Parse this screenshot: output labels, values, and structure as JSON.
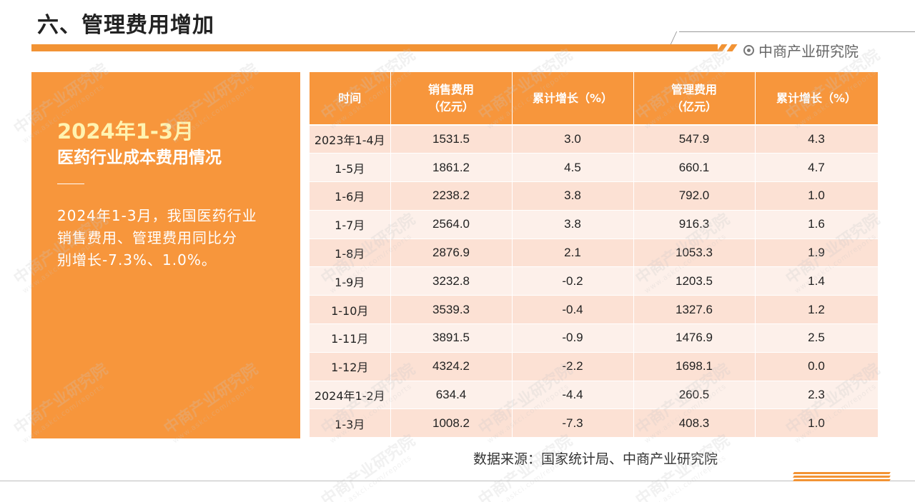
{
  "header": {
    "title": "六、管理费用增加",
    "brand": "中商产业研究院"
  },
  "panel": {
    "year_heading": "2024年1-3月",
    "subtitle": "医药行业成本费用情况",
    "lines": [
      "2024年1-3月，我国医药行业",
      "销售费用、管理费用同比分",
      "别增长-7.3%、1.0%。"
    ]
  },
  "table": {
    "headers": [
      {
        "line1": "时间",
        "line2": ""
      },
      {
        "line1": "销售费用",
        "line2": "（亿元）"
      },
      {
        "line1": "累计增长（%）",
        "line2": ""
      },
      {
        "line1": "管理费用",
        "line2": "（亿元）"
      },
      {
        "line1": "累计增长（%）",
        "line2": ""
      }
    ],
    "rows": [
      {
        "time": "2023年1-4月",
        "sales": "1531.5",
        "sales_growth": "3.0",
        "admin": "547.9",
        "admin_growth": "4.3"
      },
      {
        "time": "1-5月",
        "sales": "1861.2",
        "sales_growth": "4.5",
        "admin": "660.1",
        "admin_growth": "4.7"
      },
      {
        "time": "1-6月",
        "sales": "2238.2",
        "sales_growth": "3.8",
        "admin": "792.0",
        "admin_growth": "1.0"
      },
      {
        "time": "1-7月",
        "sales": "2564.0",
        "sales_growth": "3.8",
        "admin": "916.3",
        "admin_growth": "1.6"
      },
      {
        "time": "1-8月",
        "sales": "2876.9",
        "sales_growth": "2.1",
        "admin": "1053.3",
        "admin_growth": "1.9"
      },
      {
        "time": "1-9月",
        "sales": "3232.8",
        "sales_growth": "-0.2",
        "admin": "1203.5",
        "admin_growth": "1.4"
      },
      {
        "time": "1-10月",
        "sales": "3539.3",
        "sales_growth": "-0.4",
        "admin": "1327.6",
        "admin_growth": "1.2"
      },
      {
        "time": "1-11月",
        "sales": "3891.5",
        "sales_growth": "-0.9",
        "admin": "1476.9",
        "admin_growth": "2.5"
      },
      {
        "time": "1-12月",
        "sales": "4324.2",
        "sales_growth": "-2.2",
        "admin": "1698.1",
        "admin_growth": "0.0"
      },
      {
        "time": "2024年1-2月",
        "sales": "634.4",
        "sales_growth": "-4.4",
        "admin": "260.5",
        "admin_growth": "2.3"
      },
      {
        "time": "1-3月",
        "sales": "1008.2",
        "sales_growth": "-7.3",
        "admin": "408.3",
        "admin_growth": "1.0"
      }
    ]
  },
  "source": "数据来源：国家统计局、中商产业研究院",
  "watermark": {
    "text": "中商产业研究院",
    "url": "www.askci.com/reports"
  },
  "colors": {
    "accent": "#f7963c",
    "row_odd": "#fce1d4",
    "row_even": "#fdf0ea",
    "year_text": "#fff3b0"
  }
}
